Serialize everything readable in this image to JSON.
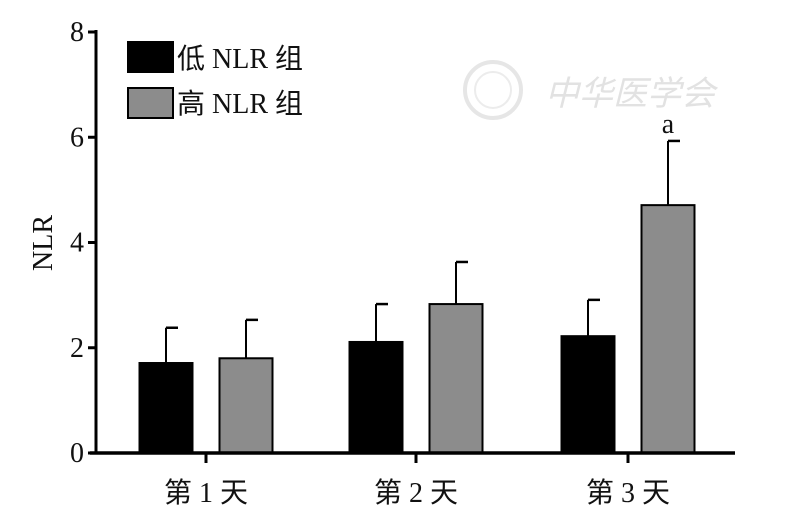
{
  "chart_data": {
    "type": "bar",
    "title": "",
    "xlabel": "",
    "ylabel": "NLR",
    "ylim": [
      0,
      8
    ],
    "yticks": [
      0,
      2,
      4,
      6,
      8
    ],
    "categories": [
      "第 1 天",
      "第 2 天",
      "第 3 天"
    ],
    "series": [
      {
        "name": "低 NLR 组",
        "color": "#000000",
        "values": [
          1.71,
          2.11,
          2.22
        ],
        "errors": [
          0.67,
          0.72,
          0.69
        ]
      },
      {
        "name": "高 NLR 组",
        "color": "#8c8c8c",
        "values": [
          1.8,
          2.83,
          4.71
        ],
        "errors": [
          0.73,
          0.8,
          1.22
        ]
      }
    ],
    "annotations": [
      {
        "category": "第 3 天",
        "series": "高 NLR 组",
        "text": "a"
      }
    ],
    "legend": "top-left",
    "grid": false
  },
  "watermark": "中华医学会"
}
